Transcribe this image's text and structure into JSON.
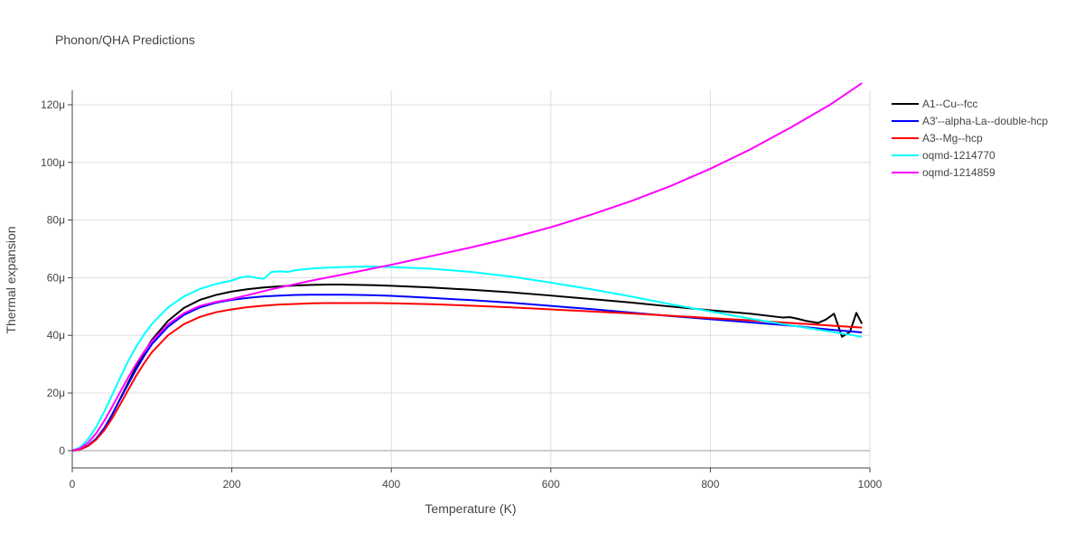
{
  "chart_data": {
    "type": "line",
    "title": "Phonon/QHA Predictions",
    "xlabel": "Temperature (K)",
    "ylabel": "Thermal expansion",
    "xlim": [
      0,
      1000
    ],
    "ylim": [
      -6e-06,
      0.000125
    ],
    "x_ticks": [
      0,
      200,
      400,
      600,
      800,
      1000
    ],
    "x_tick_labels": [
      "0",
      "200",
      "400",
      "600",
      "800",
      "1000"
    ],
    "y_ticks": [
      0,
      2e-05,
      4e-05,
      6e-05,
      8e-05,
      0.0001,
      0.00012
    ],
    "y_tick_labels": [
      "0",
      "20μ",
      "40μ",
      "60μ",
      "80μ",
      "100μ",
      "120μ"
    ],
    "grid": true,
    "legend_position": "right",
    "series": [
      {
        "name": "A1--Cu--fcc",
        "color": "#000000",
        "x": [
          0,
          10,
          20,
          30,
          40,
          50,
          60,
          70,
          80,
          90,
          100,
          120,
          140,
          160,
          180,
          200,
          220,
          240,
          260,
          280,
          300,
          320,
          340,
          360,
          380,
          400,
          450,
          500,
          550,
          600,
          650,
          700,
          750,
          800,
          850,
          890,
          900,
          910,
          920,
          935,
          945,
          955,
          965,
          975,
          983,
          990
        ],
        "y": [
          0,
          5e-07,
          1.7e-06,
          4e-06,
          7.6e-06,
          1.25e-05,
          1.8e-05,
          2.35e-05,
          2.9e-05,
          3.4e-05,
          3.85e-05,
          4.5e-05,
          4.95e-05,
          5.23e-05,
          5.4e-05,
          5.52e-05,
          5.6e-05,
          5.66e-05,
          5.7e-05,
          5.73e-05,
          5.75e-05,
          5.76e-05,
          5.76e-05,
          5.75e-05,
          5.74e-05,
          5.72e-05,
          5.66e-05,
          5.58e-05,
          5.49e-05,
          5.38e-05,
          5.26e-05,
          5.14e-05,
          5e-05,
          4.87e-05,
          4.75e-05,
          4.62e-05,
          4.63e-05,
          4.57e-05,
          4.5e-05,
          4.43e-05,
          4.55e-05,
          4.75e-05,
          3.95e-05,
          4.12e-05,
          4.78e-05,
          4.4e-05
        ]
      },
      {
        "name": "A3'--alpha-La--double-hcp",
        "color": "#0000ff",
        "x": [
          0,
          10,
          20,
          30,
          40,
          50,
          60,
          70,
          80,
          90,
          100,
          120,
          140,
          160,
          180,
          200,
          220,
          240,
          260,
          280,
          300,
          320,
          340,
          360,
          380,
          400,
          450,
          500,
          550,
          600,
          650,
          700,
          750,
          800,
          850,
          900,
          950,
          990
        ],
        "y": [
          0,
          5e-07,
          1.8e-06,
          4.2e-06,
          7.8e-06,
          1.25e-05,
          1.78e-05,
          2.3e-05,
          2.81e-05,
          3.28e-05,
          3.7e-05,
          4.3e-05,
          4.71e-05,
          4.97e-05,
          5.13e-05,
          5.23e-05,
          5.3e-05,
          5.35e-05,
          5.38e-05,
          5.4e-05,
          5.41e-05,
          5.41e-05,
          5.41e-05,
          5.4e-05,
          5.39e-05,
          5.37e-05,
          5.3e-05,
          5.22e-05,
          5.13e-05,
          5.02e-05,
          4.91e-05,
          4.79e-05,
          4.67e-05,
          4.56e-05,
          4.45e-05,
          4.34e-05,
          4.2e-05,
          4.1e-05
        ]
      },
      {
        "name": "A3--Mg--hcp",
        "color": "#ff0000",
        "x": [
          0,
          10,
          20,
          30,
          40,
          50,
          60,
          70,
          80,
          90,
          100,
          120,
          140,
          160,
          180,
          200,
          220,
          240,
          260,
          280,
          300,
          320,
          340,
          360,
          380,
          400,
          450,
          500,
          550,
          600,
          650,
          700,
          750,
          800,
          850,
          900,
          950,
          990
        ],
        "y": [
          0,
          4e-07,
          1.6e-06,
          3.8e-06,
          7e-06,
          1.12e-05,
          1.6e-05,
          2.1e-05,
          2.59e-05,
          3.03e-05,
          3.42e-05,
          4e-05,
          4.39e-05,
          4.64e-05,
          4.8e-05,
          4.9e-05,
          4.98e-05,
          5.03e-05,
          5.07e-05,
          5.09e-05,
          5.11e-05,
          5.12e-05,
          5.12e-05,
          5.12e-05,
          5.12e-05,
          5.11e-05,
          5.08e-05,
          5.03e-05,
          4.97e-05,
          4.9e-05,
          4.83e-05,
          4.76e-05,
          4.68e-05,
          4.6e-05,
          4.52e-05,
          4.43e-05,
          4.34e-05,
          4.27e-05
        ]
      },
      {
        "name": "oqmd-1214770",
        "color": "#00ffff",
        "x": [
          0,
          10,
          20,
          30,
          40,
          50,
          60,
          70,
          80,
          90,
          100,
          120,
          140,
          160,
          180,
          200,
          210,
          220,
          230,
          240,
          250,
          260,
          270,
          280,
          300,
          320,
          340,
          360,
          380,
          400,
          450,
          500,
          550,
          600,
          650,
          700,
          750,
          800,
          850,
          900,
          950,
          990
        ],
        "y": [
          0,
          1.2e-06,
          4e-06,
          8.2e-06,
          1.35e-05,
          1.93e-05,
          2.53e-05,
          3.1e-05,
          3.6e-05,
          4.03e-05,
          4.4e-05,
          4.97e-05,
          5.35e-05,
          5.61e-05,
          5.78e-05,
          5.9e-05,
          6e-05,
          6.05e-05,
          6e-05,
          5.96e-05,
          6.2e-05,
          6.22e-05,
          6.2e-05,
          6.26e-05,
          6.32e-05,
          6.35e-05,
          6.37e-05,
          6.38e-05,
          6.38e-05,
          6.37e-05,
          6.31e-05,
          6.2e-05,
          6.04e-05,
          5.83e-05,
          5.6e-05,
          5.35e-05,
          5.08e-05,
          4.83e-05,
          4.58e-05,
          4.35e-05,
          4.13e-05,
          3.95e-05
        ]
      },
      {
        "name": "oqmd-1214859",
        "color": "#ff00ff",
        "x": [
          0,
          10,
          20,
          30,
          40,
          50,
          60,
          70,
          80,
          90,
          100,
          120,
          140,
          160,
          180,
          200,
          250,
          300,
          350,
          400,
          450,
          500,
          550,
          600,
          650,
          700,
          750,
          800,
          850,
          900,
          950,
          990
        ],
        "y": [
          0,
          8e-07,
          2.8e-06,
          6e-06,
          1.03e-05,
          1.52e-05,
          2.03e-05,
          2.53e-05,
          3e-05,
          3.43e-05,
          3.8e-05,
          4.38e-05,
          4.77e-05,
          5.02e-05,
          5.16e-05,
          5.26e-05,
          5.6e-05,
          5.9e-05,
          6.17e-05,
          6.45e-05,
          6.75e-05,
          7.05e-05,
          7.38e-05,
          7.75e-05,
          8.18e-05,
          8.65e-05,
          9.18e-05,
          9.78e-05,
          0.0001045,
          0.000112,
          0.00012,
          0.0001275
        ]
      }
    ]
  }
}
